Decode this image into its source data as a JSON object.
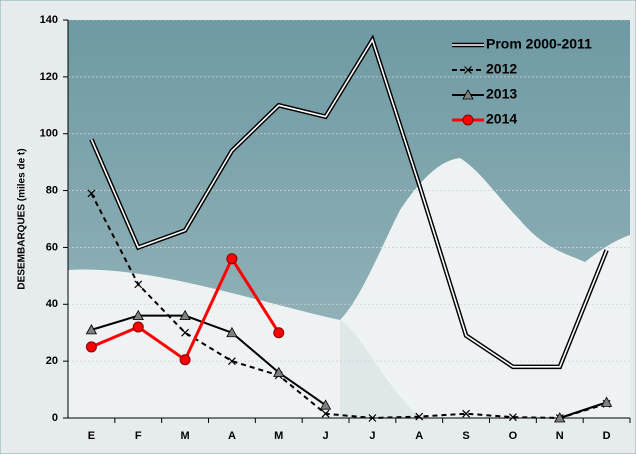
{
  "chart_data": {
    "type": "line",
    "y_axis_label": "DESEMBARQUES   (miles de t)",
    "categories": [
      "E",
      "F",
      "M",
      "A",
      "M",
      "J",
      "J",
      "A",
      "S",
      "O",
      "N",
      "D"
    ],
    "series": [
      {
        "name": "Prom 2000-2011",
        "color": "#000000",
        "style": "double",
        "values": [
          98,
          60,
          66,
          94,
          110,
          106,
          133,
          82,
          29,
          18,
          18,
          59
        ]
      },
      {
        "name": "2012",
        "color": "#000000",
        "style": "dashed",
        "marker": "x",
        "values": [
          79,
          47,
          30,
          20,
          15,
          1.5,
          0,
          0.5,
          1.5,
          0.3,
          0,
          5
        ]
      },
      {
        "name": "2013",
        "color": "#000000",
        "style": "solid",
        "marker": "triangle",
        "values": [
          31,
          36,
          36,
          30,
          16,
          4.5,
          null,
          null,
          null,
          null,
          0,
          5.5
        ]
      },
      {
        "name": "2014",
        "color": "#ff0000",
        "style": "solid",
        "marker": "circle",
        "values": [
          25,
          32,
          20.5,
          56,
          30,
          null,
          null,
          null,
          null,
          null,
          null,
          null
        ]
      }
    ],
    "ylim": [
      0,
      140
    ],
    "yticks": [
      0,
      20,
      40,
      60,
      80,
      100,
      120,
      140
    ],
    "grid": true,
    "legend": "top-right"
  }
}
